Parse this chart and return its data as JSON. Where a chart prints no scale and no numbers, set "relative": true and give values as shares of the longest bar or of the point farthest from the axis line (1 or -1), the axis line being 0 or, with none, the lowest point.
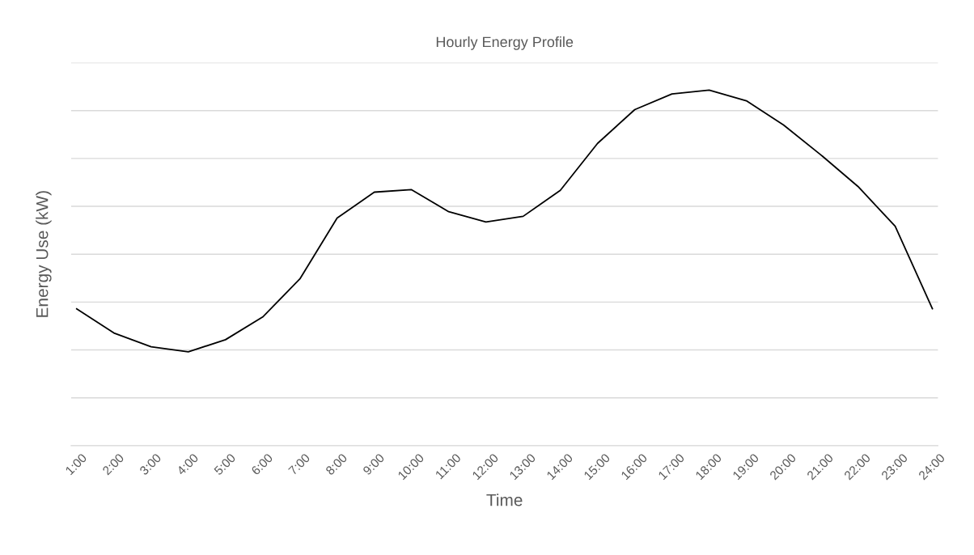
{
  "chart_data": {
    "type": "line",
    "title": "Hourly Energy Profile",
    "xlabel": "Time",
    "ylabel": "Energy Use (kW)",
    "categories": [
      "1:00",
      "2:00",
      "3:00",
      "4:00",
      "5:00",
      "6:00",
      "7:00",
      "8:00",
      "9:00",
      "10:00",
      "11:00",
      "12:00",
      "13:00",
      "14:00",
      "15:00",
      "16:00",
      "17:00",
      "18:00",
      "19:00",
      "20:00",
      "21:00",
      "22:00",
      "23:00",
      "24:00"
    ],
    "series": [
      {
        "color": "#000000",
        "values": [
          0.385,
          0.317,
          0.278,
          0.264,
          0.298,
          0.362,
          0.469,
          0.64,
          0.713,
          0.72,
          0.658,
          0.629,
          0.645,
          0.718,
          0.85,
          0.945,
          0.989,
          1.0,
          0.97,
          0.902,
          0.818,
          0.729,
          0.617,
          0.385
        ]
      }
    ],
    "relative": true,
    "grid": "y",
    "marker": "none",
    "line_style": "solid"
  }
}
